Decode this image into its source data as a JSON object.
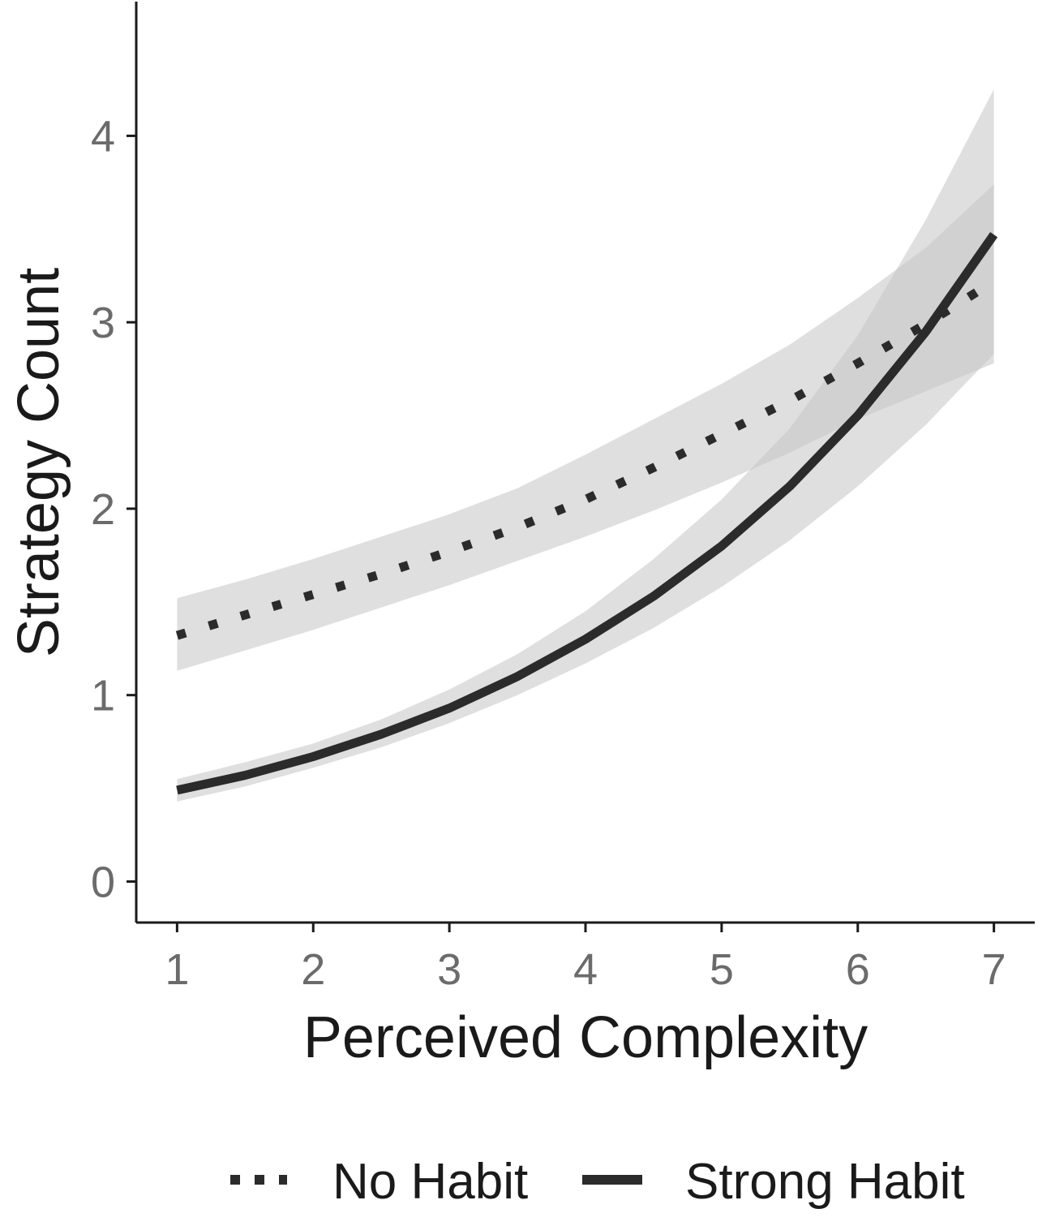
{
  "chart_data": {
    "type": "line",
    "xlabel": "Perceived Complexity",
    "ylabel": "Strategy Count",
    "xlim": [
      0.7,
      7.3
    ],
    "ylim": [
      -0.22,
      4.72
    ],
    "x_ticks": [
      1,
      2,
      3,
      4,
      5,
      6,
      7
    ],
    "y_ticks": [
      0,
      1,
      2,
      3,
      4
    ],
    "grid": false,
    "legend_position": "bottom",
    "x": [
      1,
      1.5,
      2,
      2.5,
      3,
      3.5,
      4,
      4.5,
      5,
      5.5,
      6,
      6.5,
      7
    ],
    "series": [
      {
        "name": "No Habit",
        "line_style": "dotted",
        "color": "#2b2b2b",
        "values": [
          1.32,
          1.43,
          1.54,
          1.65,
          1.77,
          1.9,
          2.05,
          2.22,
          2.4,
          2.58,
          2.78,
          2.99,
          3.22
        ],
        "ci_lower": [
          1.13,
          1.24,
          1.35,
          1.47,
          1.59,
          1.72,
          1.85,
          1.99,
          2.14,
          2.3,
          2.48,
          2.63,
          2.78
        ],
        "ci_upper": [
          1.52,
          1.62,
          1.73,
          1.85,
          1.97,
          2.11,
          2.29,
          2.48,
          2.67,
          2.88,
          3.13,
          3.4,
          3.74
        ]
      },
      {
        "name": "Strong Habit",
        "line_style": "solid",
        "color": "#2b2b2b",
        "values": [
          0.49,
          0.57,
          0.67,
          0.79,
          0.93,
          1.1,
          1.3,
          1.53,
          1.8,
          2.12,
          2.5,
          2.95,
          3.47
        ],
        "ci_lower": [
          0.43,
          0.51,
          0.61,
          0.72,
          0.85,
          1.0,
          1.17,
          1.36,
          1.58,
          1.83,
          2.12,
          2.45,
          2.83
        ],
        "ci_upper": [
          0.55,
          0.64,
          0.74,
          0.87,
          1.03,
          1.22,
          1.45,
          1.73,
          2.05,
          2.43,
          2.93,
          3.55,
          4.25
        ]
      }
    ],
    "band_color": "#c4c4c4"
  }
}
